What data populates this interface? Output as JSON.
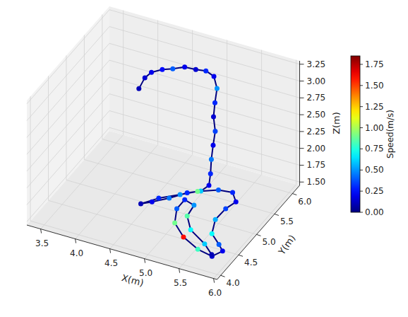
{
  "chart_data": {
    "type": "scatter3d",
    "x_label": "X(m)",
    "y_label": "Y(m)",
    "z_label": "Z(m)",
    "x": [
      4.1,
      4.16,
      4.25,
      4.36,
      4.46,
      4.58,
      4.72,
      4.83,
      4.93,
      4.98,
      4.95,
      4.94,
      4.97,
      4.95,
      4.95,
      4.99,
      5.05,
      5.0,
      4.86,
      4.72,
      4.58,
      4.47,
      4.62,
      4.83,
      5.0,
      5.26,
      5.45,
      5.57,
      5.5,
      5.47,
      5.56,
      5.75,
      5.86,
      5.79,
      5.57,
      5.3,
      5.07,
      4.97,
      4.97,
      5.12,
      5.13,
      5.29,
      5.58,
      5.77
    ],
    "y": [
      5.48,
      5.53,
      5.54,
      5.63,
      5.73,
      5.83,
      5.87,
      5.94,
      5.97,
      5.96,
      5.96,
      5.94,
      5.93,
      5.91,
      5.86,
      5.76,
      5.6,
      5.47,
      5.36,
      5.13,
      4.92,
      4.82,
      5.03,
      5.22,
      5.38,
      5.46,
      5.49,
      5.35,
      5.2,
      4.97,
      4.7,
      4.53,
      4.42,
      4.26,
      4.29,
      4.41,
      4.61,
      4.86,
      5.08,
      5.05,
      4.84,
      4.63,
      4.46,
      4.29
    ],
    "z": [
      2.75,
      2.9,
      3.0,
      3.02,
      3.0,
      3.0,
      2.98,
      2.95,
      2.88,
      2.72,
      2.5,
      2.3,
      2.1,
      1.9,
      1.72,
      1.58,
      1.52,
      1.5,
      1.5,
      1.52,
      1.55,
      1.55,
      1.55,
      1.55,
      1.55,
      1.6,
      1.6,
      1.58,
      1.55,
      1.52,
      1.5,
      1.5,
      1.5,
      1.5,
      1.52,
      1.55,
      1.57,
      1.6,
      1.6,
      1.58,
      1.55,
      1.52,
      1.5,
      1.5
    ],
    "speed": [
      0.1,
      0.15,
      0.2,
      0.25,
      0.4,
      0.2,
      0.15,
      0.3,
      0.2,
      0.5,
      0.3,
      0.15,
      0.35,
      0.2,
      0.45,
      0.3,
      0.2,
      0.6,
      0.3,
      0.45,
      0.2,
      0.1,
      0.3,
      0.5,
      0.9,
      0.4,
      0.3,
      0.2,
      0.35,
      0.55,
      0.7,
      0.4,
      0.2,
      0.15,
      0.8,
      1.6,
      0.9,
      0.4,
      0.3,
      0.5,
      0.85,
      0.7,
      0.6,
      0.1
    ],
    "xlim": [
      3.3,
      6.05
    ],
    "ylim": [
      3.9,
      6.2
    ],
    "zlim": [
      1.45,
      3.3
    ],
    "xticks": [
      3.5,
      {
        "value": 4,
        "label": "4.0"
      },
      4.5,
      {
        "value": 5,
        "label": "5.0"
      },
      5.5,
      {
        "value": 6,
        "label": "6.0"
      }
    ],
    "yticks": [
      {
        "value": 4,
        "label": "4.0"
      },
      4.5,
      {
        "value": 5,
        "label": "5.0"
      },
      5.5,
      {
        "value": 6,
        "label": "6.0"
      }
    ],
    "zticks": [
      {
        "value": 1.5,
        "label": "1.50"
      },
      1.75,
      {
        "value": 2,
        "label": "2.00"
      },
      2.25,
      {
        "value": 2.5,
        "label": "2.50"
      },
      2.75,
      {
        "value": 3,
        "label": "3.00"
      },
      3.25
    ],
    "colorbar": {
      "label": "Speed(m/s)",
      "range": [
        0,
        1.85
      ],
      "ticks": [
        {
          "value": 0,
          "label": "0.00"
        },
        0.25,
        {
          "value": 0.5,
          "label": "0.50"
        },
        0.75,
        {
          "value": 1,
          "label": "1.00"
        },
        1.25,
        {
          "value": 1.5,
          "label": "1.50"
        },
        1.75
      ]
    },
    "grid": true,
    "marker": "circle",
    "line_style": "solid"
  }
}
